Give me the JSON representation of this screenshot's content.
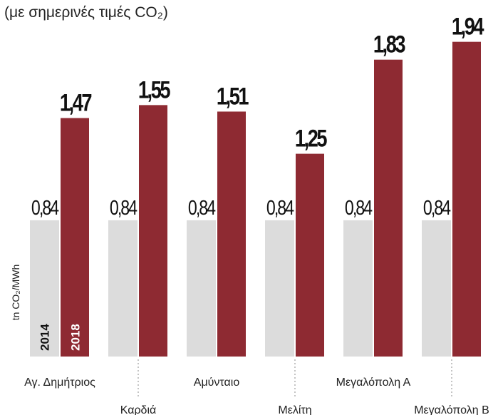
{
  "chart_data": {
    "type": "bar",
    "subtitle": "(με σημερινές τιμές CO₂)",
    "y_label": "tn CO₂/MWh",
    "categories": [
      "Αγ. Δημήτριος",
      "Καρδιά",
      "Αμύνταιο",
      "Μελίτη",
      "Μεγαλόπολη Α",
      "Μεγαλόπολη Β"
    ],
    "series": [
      {
        "name": "2014",
        "color": "#dcdcdc",
        "values": [
          0.84,
          0.84,
          0.84,
          0.84,
          0.84,
          0.84
        ],
        "value_labels": [
          "0,84",
          "0,84",
          "0,84",
          "0,84",
          "0,84",
          "0,84"
        ]
      },
      {
        "name": "2018",
        "color": "#8e2a32",
        "values": [
          1.47,
          1.55,
          1.51,
          1.25,
          1.83,
          1.94
        ],
        "value_labels": [
          "1,47",
          "1,55",
          "1,51",
          "1,25",
          "1,83",
          "1,94"
        ]
      }
    ],
    "ylim": [
      0,
      2.0
    ]
  }
}
